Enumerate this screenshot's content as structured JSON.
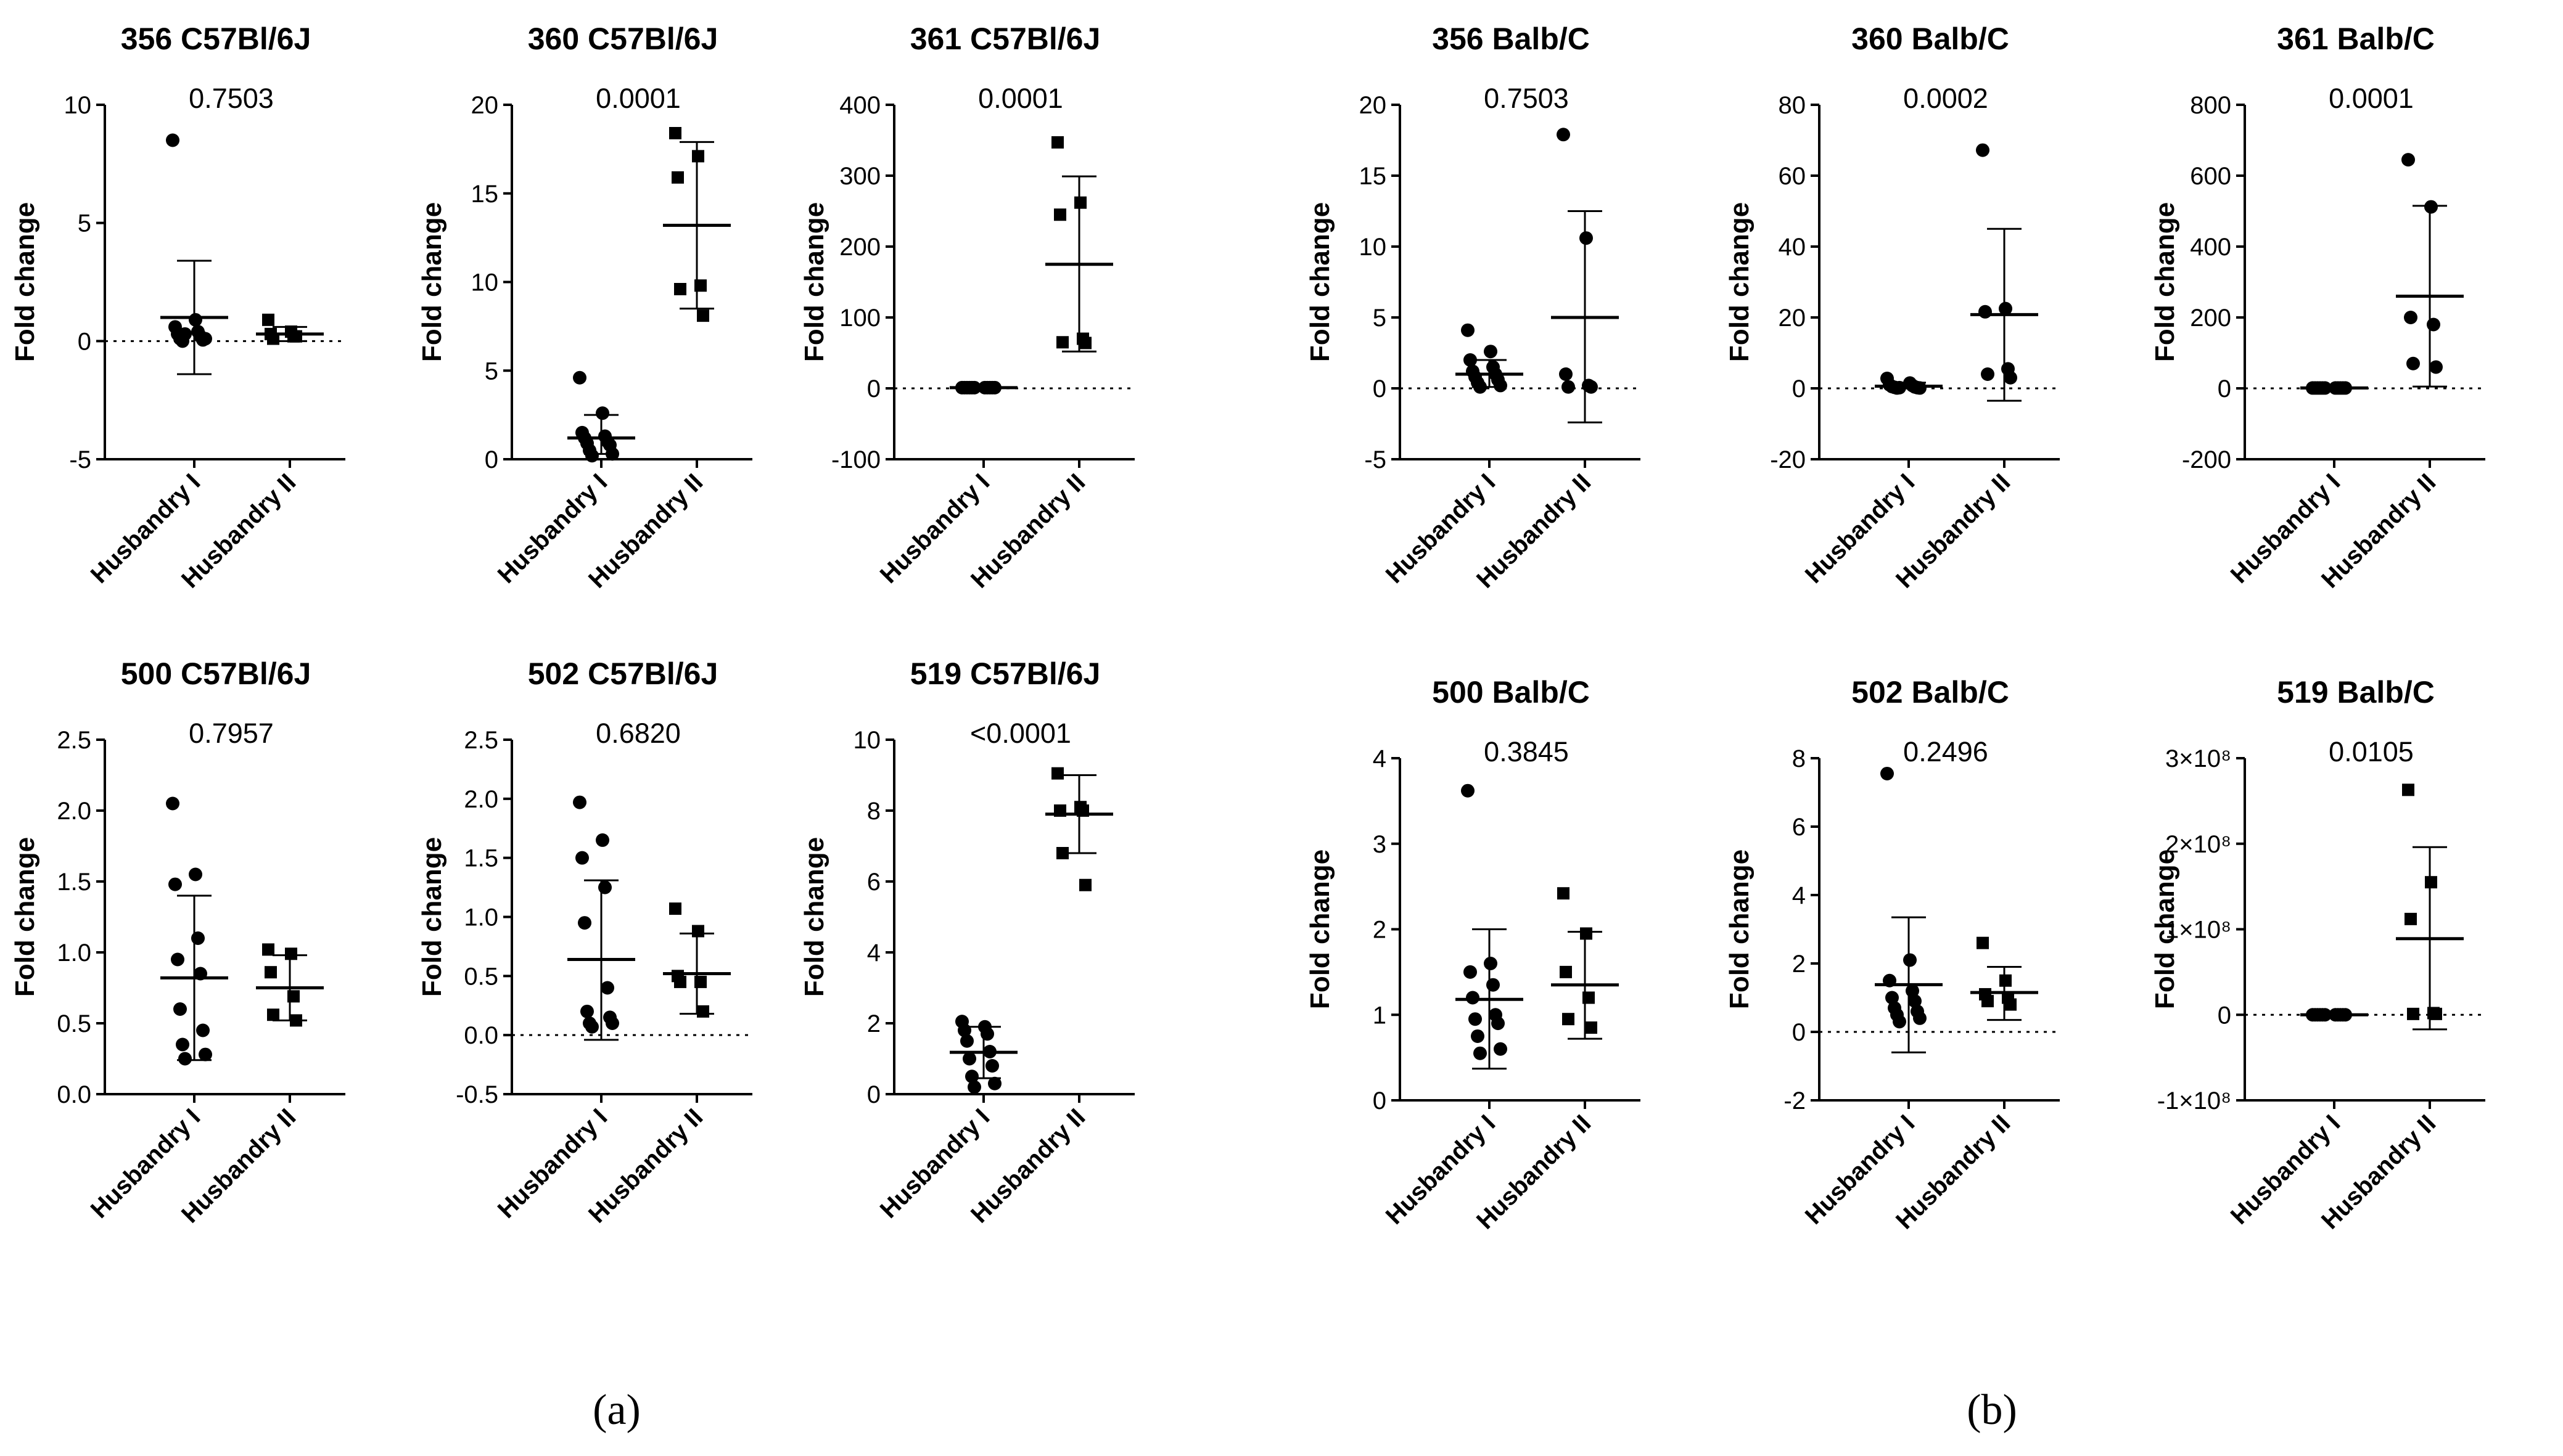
{
  "panel_labels": [
    "(a)",
    "(b)"
  ],
  "chart_data": [
    {
      "type": "scatter",
      "title": "356 C57Bl/6J",
      "pvalue": "0.7503",
      "ylabel": "Fold change",
      "categories": [
        "Husbandry I",
        "Husbandry II"
      ],
      "ylim": [
        -5,
        10
      ],
      "yticks": [
        -5,
        0,
        5,
        10
      ],
      "yticklabels": [
        "-5",
        "0",
        "5",
        "10"
      ],
      "zero_line": true,
      "groups": [
        {
          "name": "Husbandry I",
          "marker": "circle",
          "values": [
            8.5,
            0.9,
            0.6,
            0.4,
            0.3,
            0.2,
            0.1,
            0.05,
            0.0,
            0.1,
            0.3
          ],
          "mean": 1.0,
          "sd_low": -1.4,
          "sd_high": 3.4
        },
        {
          "name": "Husbandry II",
          "marker": "square",
          "values": [
            0.9,
            0.4,
            0.3,
            0.2,
            0.1,
            0.2
          ],
          "mean": 0.3,
          "sd_low": 0.0,
          "sd_high": 0.6
        }
      ]
    },
    {
      "type": "scatter",
      "title": "360 C57Bl/6J",
      "pvalue": "0.0001",
      "ylabel": "Fold change",
      "categories": [
        "Husbandry I",
        "Husbandry II"
      ],
      "ylim": [
        0,
        20
      ],
      "yticks": [
        0,
        5,
        10,
        15,
        20
      ],
      "yticklabels": [
        "0",
        "5",
        "10",
        "15",
        "20"
      ],
      "zero_line": false,
      "groups": [
        {
          "name": "Husbandry I",
          "marker": "circle",
          "values": [
            4.6,
            2.6,
            1.5,
            1.3,
            1.2,
            1.0,
            0.9,
            0.8,
            0.5,
            0.3,
            0.2
          ],
          "mean": 1.2,
          "sd_low": 0.3,
          "sd_high": 2.5
        },
        {
          "name": "Husbandry II",
          "marker": "square",
          "values": [
            18.4,
            17.1,
            15.9,
            9.8,
            9.6,
            8.1
          ],
          "mean": 13.2,
          "sd_low": 8.5,
          "sd_high": 17.9
        }
      ]
    },
    {
      "type": "scatter",
      "title": "361 C57Bl/6J",
      "pvalue": "0.0001",
      "ylabel": "Fold change",
      "categories": [
        "Husbandry I",
        "Husbandry II"
      ],
      "ylim": [
        -100,
        400
      ],
      "yticks": [
        -100,
        0,
        100,
        200,
        300,
        400
      ],
      "yticklabels": [
        "-100",
        "0",
        "100",
        "200",
        "300",
        "400"
      ],
      "zero_line": true,
      "groups": [
        {
          "name": "Husbandry I",
          "marker": "circle",
          "values": [
            1,
            1,
            1,
            1,
            1,
            1,
            1,
            1,
            1,
            1,
            1
          ],
          "mean": 1,
          "sd_low": 0,
          "sd_high": 2
        },
        {
          "name": "Husbandry II",
          "marker": "square",
          "values": [
            347,
            262,
            245,
            70,
            65,
            64
          ],
          "mean": 175,
          "sd_low": 52,
          "sd_high": 299
        }
      ]
    },
    {
      "type": "scatter",
      "title": "356 Balb/C",
      "pvalue": "0.7503",
      "ylabel": "Fold change",
      "categories": [
        "Husbandry I",
        "Husbandry II"
      ],
      "ylim": [
        -5,
        20
      ],
      "yticks": [
        -5,
        0,
        5,
        10,
        15,
        20
      ],
      "yticklabels": [
        "-5",
        "0",
        "5",
        "10",
        "15",
        "20"
      ],
      "zero_line": true,
      "groups": [
        {
          "name": "Husbandry I",
          "marker": "circle",
          "values": [
            4.1,
            2.6,
            2.0,
            1.5,
            1.2,
            1.0,
            0.8,
            0.6,
            0.4,
            0.2,
            0.1
          ],
          "mean": 1.0,
          "sd_low": 0.1,
          "sd_high": 2.0
        },
        {
          "name": "Husbandry II",
          "marker": "circle",
          "values": [
            17.9,
            10.6,
            1.0,
            0.2,
            0.1,
            0.1
          ],
          "mean": 5.0,
          "sd_low": -2.4,
          "sd_high": 12.5
        }
      ]
    },
    {
      "type": "scatter",
      "title": "360 Balb/C",
      "pvalue": "0.0002",
      "ylabel": "Fold change",
      "categories": [
        "Husbandry I",
        "Husbandry II"
      ],
      "ylim": [
        -20,
        80
      ],
      "yticks": [
        -20,
        0,
        20,
        40,
        60,
        80
      ],
      "yticklabels": [
        "-20",
        "0",
        "20",
        "40",
        "60",
        "80"
      ],
      "zero_line": true,
      "groups": [
        {
          "name": "Husbandry I",
          "marker": "circle",
          "values": [
            2.8,
            1.5,
            1.0,
            0.8,
            0.5,
            0.4,
            0.3,
            0.2,
            0.1,
            0.1,
            0.2
          ],
          "mean": 0.6,
          "sd_low": 0.0,
          "sd_high": 1.6
        },
        {
          "name": "Husbandry II",
          "marker": "circle",
          "values": [
            67.2,
            22.5,
            21.6,
            5.5,
            4.0,
            3.0
          ],
          "mean": 20.8,
          "sd_low": -3.5,
          "sd_high": 45.0
        }
      ]
    },
    {
      "type": "scatter",
      "title": "361 Balb/C",
      "pvalue": "0.0001",
      "ylabel": "Fold change",
      "categories": [
        "Husbandry I",
        "Husbandry II"
      ],
      "ylim": [
        -200,
        800
      ],
      "yticks": [
        -200,
        0,
        200,
        400,
        600,
        800
      ],
      "yticklabels": [
        "-200",
        "0",
        "200",
        "400",
        "600",
        "800"
      ],
      "zero_line": true,
      "groups": [
        {
          "name": "Husbandry I",
          "marker": "circle",
          "values": [
            1,
            1,
            1,
            1,
            1,
            1,
            1,
            1,
            1,
            1,
            1
          ],
          "mean": 1,
          "sd_low": 0,
          "sd_high": 2
        },
        {
          "name": "Husbandry II",
          "marker": "circle",
          "values": [
            645,
            512,
            200,
            180,
            70,
            60
          ],
          "mean": 260,
          "sd_low": 5,
          "sd_high": 515
        }
      ]
    },
    {
      "type": "scatter",
      "title": "500 C57Bl/6J",
      "pvalue": "0.7957",
      "ylabel": "Fold change",
      "categories": [
        "Husbandry I",
        "Husbandry II"
      ],
      "ylim": [
        0,
        2.5
      ],
      "yticks": [
        0,
        0.5,
        1,
        1.5,
        2,
        2.5
      ],
      "yticklabels": [
        "0.0",
        "0.5",
        "1.0",
        "1.5",
        "2.0",
        "2.5"
      ],
      "zero_line": false,
      "groups": [
        {
          "name": "Husbandry I",
          "marker": "circle",
          "values": [
            2.05,
            1.55,
            1.48,
            1.1,
            0.95,
            0.85,
            0.6,
            0.45,
            0.35,
            0.28,
            0.25
          ],
          "mean": 0.82,
          "sd_low": 0.24,
          "sd_high": 1.4
        },
        {
          "name": "Husbandry II",
          "marker": "square",
          "values": [
            1.02,
            0.99,
            0.86,
            0.69,
            0.56,
            0.52
          ],
          "mean": 0.75,
          "sd_low": 0.52,
          "sd_high": 0.98
        }
      ]
    },
    {
      "type": "scatter",
      "title": "502 C57Bl/6J",
      "pvalue": "0.6820",
      "ylabel": "Fold change",
      "categories": [
        "Husbandry I",
        "Husbandry II"
      ],
      "ylim": [
        -0.5,
        2.5
      ],
      "yticks": [
        -0.5,
        0,
        0.5,
        1,
        1.5,
        2,
        2.5
      ],
      "yticklabels": [
        "-0.5",
        "0.0",
        "0.5",
        "1.0",
        "1.5",
        "2.0",
        "2.5"
      ],
      "zero_line": true,
      "groups": [
        {
          "name": "Husbandry I",
          "marker": "circle",
          "values": [
            1.97,
            1.65,
            1.5,
            1.25,
            0.95,
            0.4,
            0.2,
            0.15,
            0.1,
            0.1,
            0.07
          ],
          "mean": 0.64,
          "sd_low": -0.04,
          "sd_high": 1.31
        },
        {
          "name": "Husbandry II",
          "marker": "square",
          "values": [
            1.07,
            0.88,
            0.5,
            0.45,
            0.45,
            0.2
          ],
          "mean": 0.52,
          "sd_low": 0.18,
          "sd_high": 0.86
        }
      ]
    },
    {
      "type": "scatter",
      "title": "519 C57Bl/6J",
      "pvalue": "<0.0001",
      "ylabel": "Fold change",
      "categories": [
        "Husbandry I",
        "Husbandry II"
      ],
      "ylim": [
        0,
        10
      ],
      "yticks": [
        0,
        2,
        4,
        6,
        8,
        10
      ],
      "yticklabels": [
        "0",
        "2",
        "4",
        "6",
        "8",
        "10"
      ],
      "zero_line": false,
      "groups": [
        {
          "name": "Husbandry I",
          "marker": "circle",
          "values": [
            2.05,
            1.9,
            1.8,
            1.7,
            1.5,
            1.2,
            1.0,
            0.8,
            0.5,
            0.3,
            0.2
          ],
          "mean": 1.18,
          "sd_low": 0.45,
          "sd_high": 1.9
        },
        {
          "name": "Husbandry II",
          "marker": "square",
          "values": [
            9.05,
            8.1,
            8.0,
            8.0,
            6.8,
            5.9
          ],
          "mean": 7.9,
          "sd_low": 6.8,
          "sd_high": 9.0
        }
      ]
    },
    {
      "type": "scatter",
      "title": "500 Balb/C",
      "pvalue": "0.3845",
      "ylabel": "Fold change",
      "categories": [
        "Husbandry I",
        "Husbandry II"
      ],
      "ylim": [
        0,
        4
      ],
      "yticks": [
        0,
        1,
        2,
        3,
        4
      ],
      "yticklabels": [
        "0",
        "1",
        "2",
        "3",
        "4"
      ],
      "zero_line": false,
      "groups": [
        {
          "name": "Husbandry I",
          "marker": "circle",
          "values": [
            3.62,
            1.6,
            1.5,
            1.35,
            1.2,
            1.0,
            0.95,
            0.9,
            0.75,
            0.6,
            0.55
          ],
          "mean": 1.18,
          "sd_low": 0.37,
          "sd_high": 2.0
        },
        {
          "name": "Husbandry II",
          "marker": "square",
          "values": [
            2.42,
            1.95,
            1.5,
            1.2,
            0.95,
            0.85
          ],
          "mean": 1.35,
          "sd_low": 0.72,
          "sd_high": 1.97
        }
      ]
    },
    {
      "type": "scatter",
      "title": "502 Balb/C",
      "pvalue": "0.2496",
      "ylabel": "Fold change",
      "categories": [
        "Husbandry I",
        "Husbandry II"
      ],
      "ylim": [
        -2,
        8
      ],
      "yticks": [
        -2,
        0,
        2,
        4,
        6,
        8
      ],
      "yticklabels": [
        "-2",
        "0",
        "2",
        "4",
        "6",
        "8"
      ],
      "zero_line": true,
      "groups": [
        {
          "name": "Husbandry I",
          "marker": "circle",
          "values": [
            7.55,
            2.1,
            1.5,
            1.2,
            1.0,
            0.9,
            0.7,
            0.6,
            0.5,
            0.4,
            0.3
          ],
          "mean": 1.38,
          "sd_low": -0.6,
          "sd_high": 3.35
        },
        {
          "name": "Husbandry II",
          "marker": "square",
          "values": [
            2.6,
            1.5,
            1.1,
            1.0,
            0.9,
            0.8
          ],
          "mean": 1.15,
          "sd_low": 0.35,
          "sd_high": 1.9
        }
      ]
    },
    {
      "type": "scatter",
      "title": "519 Balb/C",
      "pvalue": "0.0105",
      "ylabel": "Fold change",
      "categories": [
        "Husbandry I",
        "Husbandry II"
      ],
      "ylim": [
        -100000000,
        300000000
      ],
      "yticks": [
        -100000000,
        0,
        100000000,
        200000000,
        300000000
      ],
      "yticklabels": [
        "-1×10⁸",
        "0",
        "1×10⁸",
        "2×10⁸",
        "3×10⁸"
      ],
      "zero_line": true,
      "groups": [
        {
          "name": "Husbandry I",
          "marker": "circle",
          "values": [
            0,
            0,
            0,
            0,
            0,
            0,
            0,
            0,
            0,
            0,
            0
          ],
          "mean": 0,
          "sd_low": 0,
          "sd_high": 0
        },
        {
          "name": "Husbandry II",
          "marker": "square",
          "values": [
            263000000,
            155000000,
            112000000,
            2000000,
            1000000,
            1000000
          ],
          "mean": 89000000,
          "sd_low": -17000000,
          "sd_high": 196000000
        }
      ]
    }
  ]
}
